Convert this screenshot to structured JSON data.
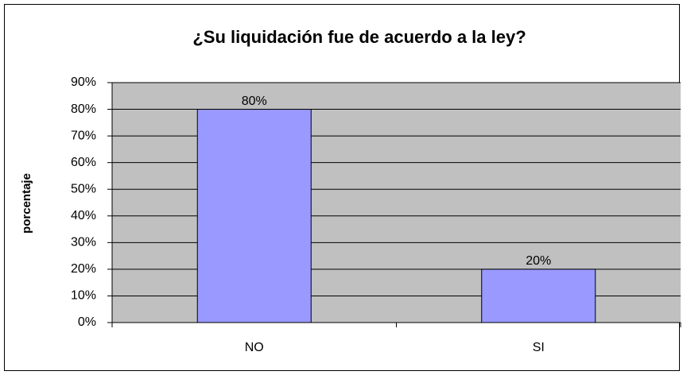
{
  "chart_data": {
    "type": "bar",
    "title": "¿Su liquidación fue de acuerdo a la ley?",
    "y_label": "porcentaje",
    "categories": [
      "NO",
      "SI"
    ],
    "values": [
      80,
      20
    ],
    "value_labels": [
      "80%",
      "20%"
    ],
    "color": "#9999ff",
    "plot_background": "#c0c0c0",
    "ylim": [
      0,
      90
    ],
    "yticks": [
      {
        "value": 0,
        "label": "0%"
      },
      {
        "value": 10,
        "label": "10%"
      },
      {
        "value": 20,
        "label": "20%"
      },
      {
        "value": 30,
        "label": "30%"
      },
      {
        "value": 40,
        "label": "40%"
      },
      {
        "value": 50,
        "label": "50%"
      },
      {
        "value": 60,
        "label": "60%"
      },
      {
        "value": 70,
        "label": "70%"
      },
      {
        "value": 80,
        "label": "80%"
      },
      {
        "value": 90,
        "label": "90%"
      }
    ],
    "grid": true
  }
}
